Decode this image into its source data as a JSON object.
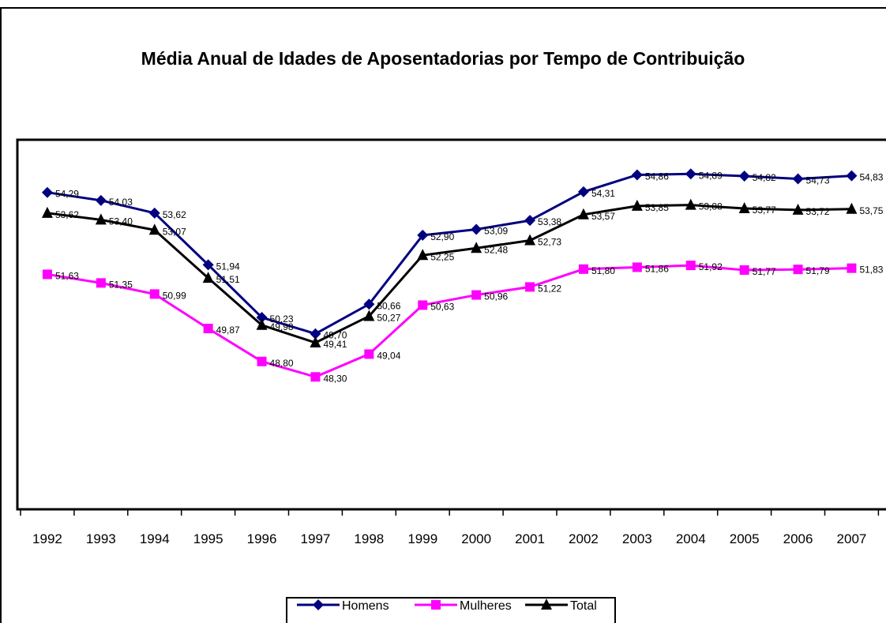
{
  "chart_data": {
    "type": "line",
    "title": "Média Anual de Idades de Aposentadorias por Tempo de Contribuição",
    "categories": [
      "1992",
      "1993",
      "1994",
      "1995",
      "1996",
      "1997",
      "1998",
      "1999",
      "2000",
      "2001",
      "2002",
      "2003",
      "2004",
      "2005",
      "2006",
      "2007"
    ],
    "ylim": [
      44,
      56
    ],
    "legend": "bottom",
    "series": [
      {
        "name": "Homens",
        "color": "#000080",
        "marker": "diamond",
        "values": [
          54.29,
          54.03,
          53.62,
          51.94,
          50.23,
          49.7,
          50.66,
          52.9,
          53.09,
          53.38,
          54.31,
          54.86,
          54.89,
          54.82,
          54.73,
          54.83
        ],
        "value_labels": [
          "54,29",
          "54,03",
          "53,62",
          "51,94",
          "50,23",
          "49,70",
          "50,66",
          "52,90",
          "53,09",
          "53,38",
          "54,31",
          "54,86",
          "54,89",
          "54,82",
          "54,73",
          "54,83"
        ]
      },
      {
        "name": "Mulheres",
        "color": "#ff00ff",
        "marker": "square",
        "values": [
          51.63,
          51.35,
          50.99,
          49.87,
          48.8,
          48.3,
          49.04,
          50.63,
          50.96,
          51.22,
          51.8,
          51.86,
          51.92,
          51.77,
          51.79,
          51.83
        ],
        "value_labels": [
          "51,63",
          "51,35",
          "50,99",
          "49,87",
          "48,80",
          "48,30",
          "49,04",
          "50,63",
          "50,96",
          "51,22",
          "51,80",
          "51,86",
          "51,92",
          "51,77",
          "51,79",
          "51,83"
        ]
      },
      {
        "name": "Total",
        "color": "#000000",
        "marker": "triangle",
        "values": [
          53.62,
          53.4,
          53.07,
          51.51,
          49.98,
          49.41,
          50.27,
          52.25,
          52.48,
          52.73,
          53.57,
          53.85,
          53.88,
          53.77,
          53.72,
          53.75
        ],
        "value_labels": [
          "53,62",
          "53,40",
          "53,07",
          "51,51",
          "49,98",
          "49,41",
          "50,27",
          "52,25",
          "52,48",
          "52,73",
          "53,57",
          "53,85",
          "53,88",
          "53,77",
          "53,72",
          "53,75"
        ]
      }
    ]
  }
}
